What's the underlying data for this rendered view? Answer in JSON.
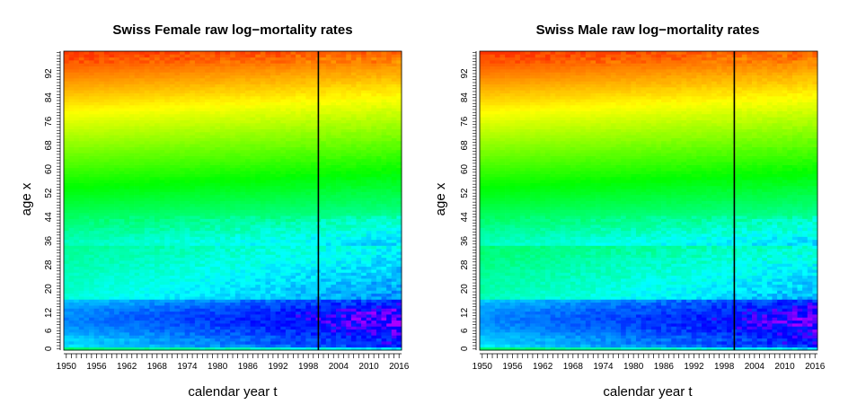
{
  "chart_data": [
    {
      "type": "heatmap",
      "title": "Swiss Female raw log−mortality rates",
      "xlabel": "calendar year t",
      "ylabel": "age x",
      "x_range": [
        1950,
        2016
      ],
      "y_range": [
        0,
        99
      ],
      "x_ticks": [
        "1950",
        "1956",
        "1962",
        "1968",
        "1974",
        "1980",
        "1986",
        "1992",
        "1998",
        "2004",
        "2010",
        "2016"
      ],
      "y_ticks": [
        "0",
        "6",
        "12",
        "20",
        "28",
        "36",
        "44",
        "52",
        "60",
        "68",
        "76",
        "84",
        "92"
      ],
      "vline_year": 2000,
      "vline_color": "#000000",
      "colormap": "rainbow (blue = low, red = high)",
      "child_dip_strength": 1.0,
      "young_adult_hump": 0.55
    },
    {
      "type": "heatmap",
      "title": "Swiss Male raw log−mortality rates",
      "xlabel": "calendar year t",
      "ylabel": "age x",
      "x_range": [
        1950,
        2016
      ],
      "y_range": [
        0,
        99
      ],
      "x_ticks": [
        "1950",
        "1956",
        "1962",
        "1968",
        "1974",
        "1980",
        "1986",
        "1992",
        "1998",
        "2004",
        "2010",
        "2016"
      ],
      "y_ticks": [
        "0",
        "6",
        "12",
        "20",
        "28",
        "36",
        "44",
        "52",
        "60",
        "68",
        "76",
        "84",
        "92"
      ],
      "vline_year": 2000,
      "vline_color": "#000000",
      "colormap": "rainbow (blue = low, red = high)",
      "child_dip_strength": 0.9,
      "young_adult_hump": 1.0
    }
  ]
}
